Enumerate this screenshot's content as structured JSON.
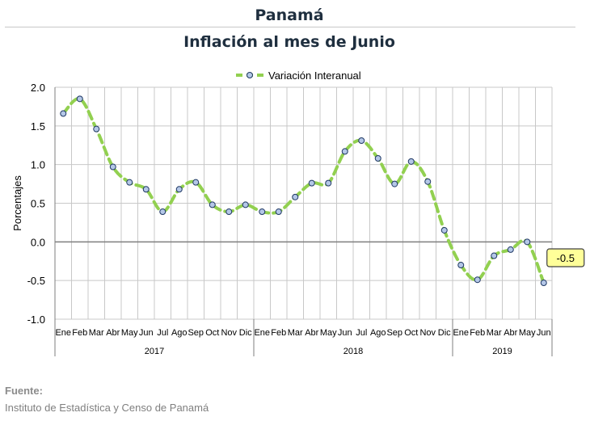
{
  "title": "Panamá",
  "subtitle": "Inflación al mes de Junio",
  "source": {
    "label": "Fuente:",
    "text": "Instituto de Estadística y Censo de Panamá"
  },
  "colors": {
    "line": "#92d050",
    "marker_fill": "#b4c7e7",
    "marker_stroke": "#1f3864",
    "grid": "#c8c8c8",
    "callout_fill": "#ffff99"
  },
  "chart_data": {
    "type": "line",
    "ylabel": "Porcentajes",
    "ylim": [
      -1.0,
      2.0
    ],
    "yticks": [
      "2.0",
      "1.5",
      "1.0",
      "0.5",
      "0.0",
      "-0.5",
      "-1.0"
    ],
    "legend": "top-center",
    "grid": true,
    "categories": [
      "Ene",
      "Feb",
      "Mar",
      "Abr",
      "May",
      "Jun",
      "Jul",
      "Ago",
      "Sep",
      "Oct",
      "Nov",
      "Dic",
      "Ene",
      "Feb",
      "Mar",
      "Abr",
      "May",
      "Jun",
      "Jul",
      "Ago",
      "Sep",
      "Oct",
      "Nov",
      "Dic",
      "Ene",
      "Feb",
      "Mar",
      "Abr",
      "May",
      "Jun"
    ],
    "years": [
      {
        "label": "2017",
        "count": 12
      },
      {
        "label": "2018",
        "count": 12
      },
      {
        "label": "2019",
        "count": 6
      }
    ],
    "series": [
      {
        "name": "Variación Interanual",
        "values": [
          1.66,
          1.85,
          1.46,
          0.97,
          0.77,
          0.68,
          0.39,
          0.68,
          0.77,
          0.48,
          0.39,
          0.48,
          0.39,
          0.39,
          0.58,
          0.76,
          0.76,
          1.17,
          1.31,
          1.08,
          0.75,
          1.04,
          0.78,
          0.15,
          -0.3,
          -0.49,
          -0.18,
          -0.1,
          0.0,
          -0.53
        ]
      }
    ],
    "annotation": {
      "text": "-0.5",
      "index": 29
    }
  }
}
